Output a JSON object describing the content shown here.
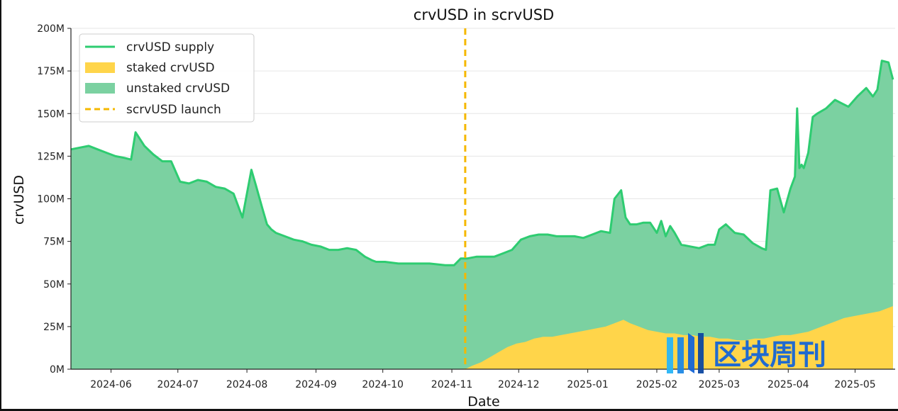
{
  "chart_data": {
    "type": "area",
    "title": "crvUSD in scrvUSD",
    "xlabel": "Date",
    "ylabel": "crvUSD",
    "ylim": [
      0,
      200
    ],
    "xlim": [
      "2024-05-14",
      "2025-05-19"
    ],
    "grid": "horizontal",
    "legend_position": "top-left",
    "y_ticks": [
      0,
      25,
      50,
      75,
      100,
      125,
      150,
      175,
      200
    ],
    "y_tick_labels": [
      "0M",
      "25M",
      "50M",
      "75M",
      "100M",
      "125M",
      "150M",
      "175M",
      "200M"
    ],
    "x_ticks": [
      "2024-06-01",
      "2024-07-01",
      "2024-08-01",
      "2024-09-01",
      "2024-10-01",
      "2024-11-01",
      "2024-12-01",
      "2025-01-01",
      "2025-02-01",
      "2025-03-01",
      "2025-04-01",
      "2025-05-01"
    ],
    "x_tick_labels": [
      "2024-06",
      "2024-07",
      "2024-08",
      "2024-09",
      "2024-10",
      "2024-11",
      "2024-12",
      "2025-01",
      "2025-02",
      "2025-03",
      "2025-04",
      "2025-05"
    ],
    "colors": {
      "supply": "#2ecc71",
      "unstaked": "#7bd1a1",
      "staked": "#ffd54a",
      "launch": "#f5b800"
    },
    "series": [
      {
        "name": "crvUSD supply",
        "kind": "line",
        "x": [
          "2024-05-14",
          "2024-05-18",
          "2024-05-22",
          "2024-05-26",
          "2024-05-30",
          "2024-06-03",
          "2024-06-07",
          "2024-06-10",
          "2024-06-12",
          "2024-06-16",
          "2024-06-20",
          "2024-06-24",
          "2024-06-28",
          "2024-07-02",
          "2024-07-06",
          "2024-07-10",
          "2024-07-14",
          "2024-07-18",
          "2024-07-22",
          "2024-07-26",
          "2024-07-30",
          "2024-08-03",
          "2024-08-05",
          "2024-08-08",
          "2024-08-10",
          "2024-08-12",
          "2024-08-14",
          "2024-08-18",
          "2024-08-22",
          "2024-08-26",
          "2024-08-30",
          "2024-09-03",
          "2024-09-07",
          "2024-09-11",
          "2024-09-15",
          "2024-09-19",
          "2024-09-23",
          "2024-09-26",
          "2024-09-28",
          "2024-10-02",
          "2024-10-08",
          "2024-10-15",
          "2024-10-22",
          "2024-10-29",
          "2024-11-02",
          "2024-11-05",
          "2024-11-08",
          "2024-11-12",
          "2024-11-16",
          "2024-11-20",
          "2024-11-24",
          "2024-11-28",
          "2024-12-02",
          "2024-12-06",
          "2024-12-10",
          "2024-12-14",
          "2024-12-18",
          "2024-12-22",
          "2024-12-26",
          "2024-12-30",
          "2025-01-03",
          "2025-01-07",
          "2025-01-11",
          "2025-01-13",
          "2025-01-16",
          "2025-01-18",
          "2025-01-20",
          "2025-01-23",
          "2025-01-26",
          "2025-01-29",
          "2025-02-01",
          "2025-02-03",
          "2025-02-05",
          "2025-02-07",
          "2025-02-09",
          "2025-02-12",
          "2025-02-16",
          "2025-02-20",
          "2025-02-24",
          "2025-02-27",
          "2025-03-01",
          "2025-03-04",
          "2025-03-08",
          "2025-03-12",
          "2025-03-16",
          "2025-03-20",
          "2025-03-22",
          "2025-03-24",
          "2025-03-27",
          "2025-03-30",
          "2025-04-02",
          "2025-04-04",
          "2025-04-05",
          "2025-04-06",
          "2025-04-07",
          "2025-04-08",
          "2025-04-10",
          "2025-04-12",
          "2025-04-14",
          "2025-04-18",
          "2025-04-22",
          "2025-04-25",
          "2025-04-28",
          "2025-05-02",
          "2025-05-06",
          "2025-05-09",
          "2025-05-11",
          "2025-05-13",
          "2025-05-16",
          "2025-05-18"
        ],
        "values": [
          129,
          130,
          131,
          129,
          127,
          125,
          124,
          123,
          139,
          131,
          126,
          122,
          122,
          110,
          109,
          111,
          110,
          107,
          106,
          103,
          89,
          117,
          108,
          94,
          85,
          82,
          80,
          78,
          76,
          75,
          73,
          72,
          70,
          70,
          71,
          70,
          66,
          64,
          63,
          63,
          62,
          62,
          62,
          61,
          61,
          65,
          65,
          66,
          66,
          66,
          68,
          70,
          76,
          78,
          79,
          79,
          78,
          78,
          78,
          77,
          79,
          81,
          80,
          100,
          105,
          89,
          85,
          85,
          86,
          86,
          80,
          87,
          78,
          84,
          80,
          73,
          72,
          71,
          73,
          73,
          82,
          85,
          80,
          79,
          74,
          71,
          70,
          105,
          106,
          92,
          106,
          113,
          153,
          118,
          120,
          118,
          127,
          148,
          150,
          153,
          158,
          156,
          154,
          160,
          165,
          160,
          164,
          181,
          180,
          170
        ]
      },
      {
        "name": "staked crvUSD",
        "kind": "area",
        "x": [
          "2024-11-07",
          "2024-11-10",
          "2024-11-14",
          "2024-11-18",
          "2024-11-22",
          "2024-11-26",
          "2024-11-30",
          "2024-12-04",
          "2024-12-08",
          "2024-12-12",
          "2024-12-16",
          "2024-12-20",
          "2024-12-24",
          "2024-12-28",
          "2025-01-01",
          "2025-01-05",
          "2025-01-09",
          "2025-01-13",
          "2025-01-17",
          "2025-01-20",
          "2025-01-24",
          "2025-01-28",
          "2025-02-01",
          "2025-02-05",
          "2025-02-09",
          "2025-02-13",
          "2025-02-17",
          "2025-02-21",
          "2025-02-25",
          "2025-03-01",
          "2025-03-05",
          "2025-03-09",
          "2025-03-13",
          "2025-03-17",
          "2025-03-21",
          "2025-03-25",
          "2025-03-29",
          "2025-04-02",
          "2025-04-06",
          "2025-04-10",
          "2025-04-14",
          "2025-04-18",
          "2025-04-22",
          "2025-04-26",
          "2025-04-30",
          "2025-05-04",
          "2025-05-08",
          "2025-05-12",
          "2025-05-16",
          "2025-05-18"
        ],
        "values": [
          0,
          2,
          4,
          7,
          10,
          13,
          15,
          16,
          18,
          19,
          19,
          20,
          21,
          22,
          23,
          24,
          25,
          27,
          29,
          27,
          25,
          23,
          22,
          21,
          21,
          20,
          20,
          19,
          19,
          18,
          18,
          17,
          17,
          18,
          18,
          19,
          20,
          20,
          21,
          22,
          24,
          26,
          28,
          30,
          31,
          32,
          33,
          34,
          36,
          37
        ]
      },
      {
        "name": "unstaked crvUSD",
        "kind": "area",
        "definition": "crvUSD supply minus staked crvUSD"
      },
      {
        "name": "scrvUSD launch",
        "kind": "vline",
        "x": "2024-11-07"
      }
    ]
  },
  "watermark": {
    "text": "区块周刊",
    "logo_icon": "chevron-bars-logo-icon"
  }
}
